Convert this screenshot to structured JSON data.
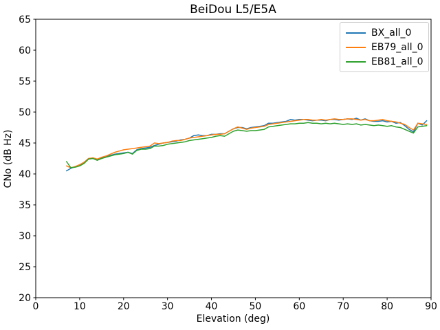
{
  "chart_data": {
    "type": "line",
    "title": "BeiDou L5/E5A",
    "xlabel": "Elevation (deg)",
    "ylabel": "CNo (dB Hz)",
    "xlim": [
      0,
      90
    ],
    "ylim": [
      20,
      65
    ],
    "xticks": [
      0,
      10,
      20,
      30,
      40,
      50,
      60,
      70,
      80,
      90
    ],
    "yticks": [
      20,
      25,
      30,
      35,
      40,
      45,
      50,
      55,
      60,
      65
    ],
    "grid": false,
    "legend_position": "upper-right",
    "frame_color": "#000000",
    "x": [
      7,
      8,
      9,
      10,
      11,
      12,
      13,
      14,
      15,
      16,
      17,
      18,
      19,
      20,
      21,
      22,
      23,
      24,
      25,
      26,
      27,
      28,
      29,
      30,
      31,
      32,
      33,
      34,
      35,
      36,
      37,
      38,
      39,
      40,
      41,
      42,
      43,
      44,
      45,
      46,
      47,
      48,
      49,
      50,
      51,
      52,
      53,
      54,
      55,
      56,
      57,
      58,
      59,
      60,
      61,
      62,
      63,
      64,
      65,
      66,
      67,
      68,
      69,
      70,
      71,
      72,
      73,
      74,
      75,
      76,
      77,
      78,
      79,
      80,
      81,
      82,
      83,
      84,
      85,
      86,
      87,
      88,
      89
    ],
    "series": [
      {
        "name": "BX_all_0",
        "color": "#1f77b4",
        "values": [
          40.5,
          40.9,
          41.2,
          41.4,
          41.8,
          42.4,
          42.5,
          42.3,
          42.6,
          42.8,
          43.0,
          43.2,
          43.3,
          43.4,
          43.5,
          43.3,
          43.9,
          44.1,
          44.2,
          44.3,
          44.6,
          44.8,
          45.0,
          45.1,
          45.2,
          45.3,
          45.5,
          45.6,
          45.8,
          46.2,
          46.3,
          46.2,
          46.2,
          46.4,
          46.4,
          46.5,
          46.5,
          46.9,
          47.3,
          47.5,
          47.5,
          47.3,
          47.5,
          47.6,
          47.7,
          47.8,
          48.2,
          48.2,
          48.3,
          48.4,
          48.5,
          48.8,
          48.7,
          48.8,
          48.8,
          48.7,
          48.6,
          48.7,
          48.7,
          48.6,
          48.8,
          48.8,
          48.7,
          48.8,
          48.9,
          48.8,
          49.0,
          48.7,
          48.9,
          48.6,
          48.5,
          48.5,
          48.6,
          48.4,
          48.5,
          48.2,
          48.3,
          47.8,
          47.2,
          46.8,
          48.2,
          47.9,
          48.6
        ]
      },
      {
        "name": "EB79_all_0",
        "color": "#ff7f0e",
        "values": [
          41.3,
          41.0,
          41.2,
          41.5,
          41.9,
          42.5,
          42.6,
          42.4,
          42.7,
          42.9,
          43.2,
          43.5,
          43.7,
          43.9,
          44.0,
          44.1,
          44.2,
          44.3,
          44.4,
          44.5,
          45.0,
          44.9,
          45.0,
          45.1,
          45.3,
          45.4,
          45.4,
          45.6,
          45.8,
          45.9,
          46.0,
          46.1,
          46.2,
          46.3,
          46.4,
          46.4,
          46.5,
          46.9,
          47.3,
          47.6,
          47.4,
          47.2,
          47.4,
          47.5,
          47.6,
          47.7,
          48.0,
          48.1,
          48.2,
          48.3,
          48.4,
          48.5,
          48.6,
          48.7,
          48.8,
          48.8,
          48.7,
          48.7,
          48.8,
          48.7,
          48.8,
          48.9,
          48.8,
          48.8,
          48.9,
          48.9,
          48.8,
          48.7,
          48.8,
          48.6,
          48.6,
          48.7,
          48.8,
          48.6,
          48.5,
          48.4,
          48.2,
          48.0,
          47.5,
          47.1,
          48.2,
          48.1,
          48.0
        ]
      },
      {
        "name": "EB81_all_0",
        "color": "#2ca02c",
        "values": [
          42.0,
          41.0,
          41.1,
          41.3,
          41.7,
          42.4,
          42.5,
          42.2,
          42.5,
          42.7,
          42.9,
          43.1,
          43.2,
          43.3,
          43.5,
          43.2,
          43.8,
          44.0,
          44.0,
          44.1,
          44.5,
          44.5,
          44.6,
          44.8,
          44.9,
          45.0,
          45.1,
          45.2,
          45.4,
          45.5,
          45.6,
          45.7,
          45.8,
          45.9,
          46.1,
          46.2,
          46.1,
          46.5,
          46.9,
          47.1,
          47.0,
          46.9,
          47.0,
          47.0,
          47.1,
          47.2,
          47.6,
          47.7,
          47.8,
          47.9,
          48.0,
          48.1,
          48.1,
          48.2,
          48.2,
          48.3,
          48.2,
          48.2,
          48.1,
          48.2,
          48.1,
          48.2,
          48.1,
          48.0,
          48.1,
          48.0,
          48.1,
          47.9,
          48.0,
          47.9,
          47.8,
          47.9,
          47.8,
          47.7,
          47.8,
          47.6,
          47.5,
          47.2,
          46.9,
          46.6,
          47.6,
          47.7,
          47.8
        ]
      }
    ]
  }
}
